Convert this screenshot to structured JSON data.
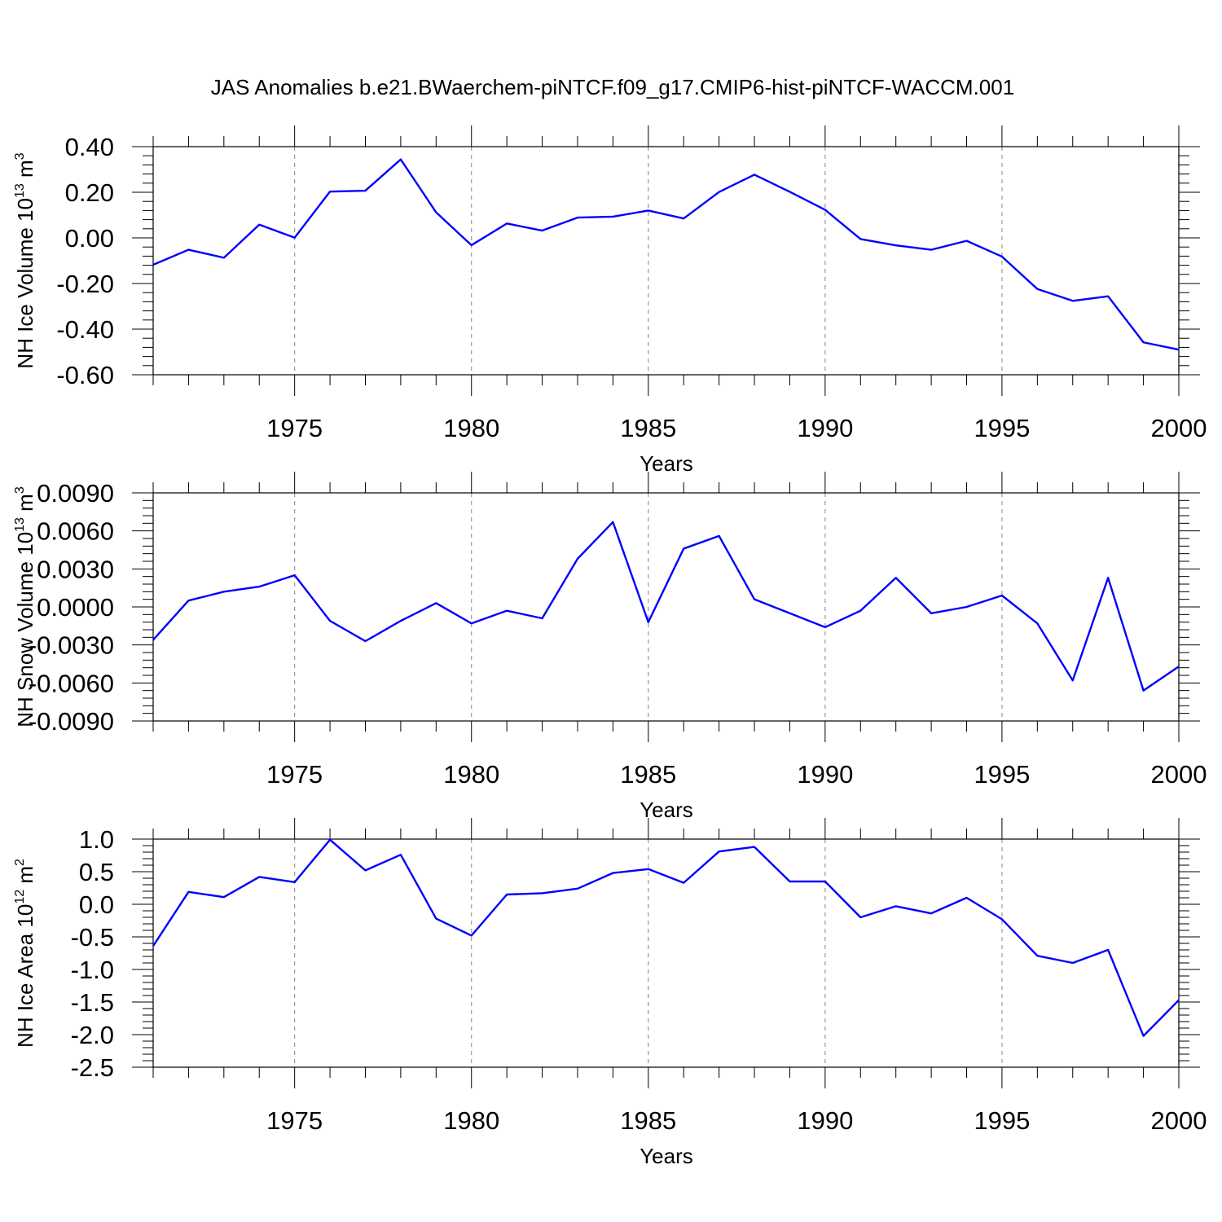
{
  "title": "JAS Anomalies b.e21.BWaerchem-piNTCF.f09_g17.CMIP6-hist-piNTCF-WACCM.001",
  "chart_data": [
    {
      "type": "line",
      "name": "ice-volume",
      "ylabel": {
        "main": "NH Ice Volume 10",
        "sup": "13",
        "unit": " m",
        "unit_sup": "3"
      },
      "xlabel": "Years",
      "xlim": [
        1971,
        2000
      ],
      "ylim": [
        -0.6,
        0.4
      ],
      "yticks": [
        0.4,
        0.2,
        0.0,
        -0.2,
        -0.4,
        -0.6
      ],
      "ytick_labels": [
        "0.40",
        "0.20",
        "0.00",
        "-0.20",
        "-0.40",
        "-0.60"
      ],
      "xticks": [
        1975,
        1980,
        1985,
        1990,
        1995,
        2000
      ],
      "xtick_labels": [
        "1975",
        "1980",
        "1985",
        "1990",
        "1995",
        "2000"
      ],
      "color": "#0000ff",
      "grid_color": "#999999",
      "x": [
        1971,
        1972,
        1973,
        1974,
        1975,
        1976,
        1977,
        1978,
        1979,
        1980,
        1981,
        1982,
        1983,
        1984,
        1985,
        1986,
        1987,
        1988,
        1989,
        1990,
        1991,
        1992,
        1993,
        1994,
        1995,
        1996,
        1997,
        1998,
        1999,
        2000
      ],
      "y": [
        -0.118,
        -0.052,
        -0.087,
        0.058,
        0.001,
        0.203,
        0.207,
        0.344,
        0.112,
        -0.032,
        0.063,
        0.032,
        0.089,
        0.093,
        0.12,
        0.085,
        0.201,
        0.277,
        0.202,
        0.123,
        -0.005,
        -0.033,
        -0.052,
        -0.013,
        -0.082,
        -0.224,
        -0.276,
        -0.256,
        -0.458,
        -0.49
      ]
    },
    {
      "type": "line",
      "name": "snow-volume",
      "ylabel": {
        "main": "NH Snow Volume 10",
        "sup": "13",
        "unit": " m",
        "unit_sup": "3"
      },
      "xlabel": "Years",
      "xlim": [
        1971,
        2000
      ],
      "ylim": [
        -0.009,
        0.009
      ],
      "yticks": [
        0.009,
        0.006,
        0.003,
        0.0,
        -0.003,
        -0.006,
        -0.009
      ],
      "ytick_labels": [
        "0.0090",
        "0.0060",
        "0.0030",
        "0.0000",
        "-0.0030",
        "-0.0060",
        "-0.0090"
      ],
      "xticks": [
        1975,
        1980,
        1985,
        1990,
        1995,
        2000
      ],
      "xtick_labels": [
        "1975",
        "1980",
        "1985",
        "1990",
        "1995",
        "2000"
      ],
      "color": "#0000ff",
      "grid_color": "#999999",
      "x": [
        1971,
        1972,
        1973,
        1974,
        1975,
        1976,
        1977,
        1978,
        1979,
        1980,
        1981,
        1982,
        1983,
        1984,
        1985,
        1986,
        1987,
        1988,
        1989,
        1990,
        1991,
        1992,
        1993,
        1994,
        1995,
        1996,
        1997,
        1998,
        1999,
        2000
      ],
      "y": [
        -0.0026,
        0.0005,
        0.0012,
        0.0016,
        0.0025,
        -0.0011,
        -0.0027,
        -0.0011,
        0.0003,
        -0.0013,
        -0.0003,
        -0.0009,
        0.0038,
        0.0067,
        -0.0012,
        0.0046,
        0.0056,
        0.0006,
        -0.0005,
        -0.0016,
        -0.0003,
        0.0023,
        -0.0005,
        0.0,
        0.0009,
        -0.0013,
        -0.0058,
        0.0023,
        -0.0066,
        -0.0047
      ]
    },
    {
      "type": "line",
      "name": "ice-area",
      "ylabel": {
        "main": "NH Ice Area 10",
        "sup": "12",
        "unit": " m",
        "unit_sup": "2"
      },
      "xlabel": "Years",
      "xlim": [
        1971,
        2000
      ],
      "ylim": [
        -2.5,
        1.0
      ],
      "yticks": [
        1.0,
        0.5,
        0.0,
        -0.5,
        -1.0,
        -1.5,
        -2.0,
        -2.5
      ],
      "ytick_labels": [
        "1.0",
        "0.5",
        "0.0",
        "-0.5",
        "-1.0",
        "-1.5",
        "-2.0",
        "-2.5"
      ],
      "xticks": [
        1975,
        1980,
        1985,
        1990,
        1995,
        2000
      ],
      "xtick_labels": [
        "1975",
        "1980",
        "1985",
        "1990",
        "1995",
        "2000"
      ],
      "color": "#0000ff",
      "grid_color": "#999999",
      "x": [
        1971,
        1972,
        1973,
        1974,
        1975,
        1976,
        1977,
        1978,
        1979,
        1980,
        1981,
        1982,
        1983,
        1984,
        1985,
        1986,
        1987,
        1988,
        1989,
        1990,
        1991,
        1992,
        1993,
        1994,
        1995,
        1996,
        1997,
        1998,
        1999,
        2000
      ],
      "y": [
        -0.64,
        0.19,
        0.11,
        0.42,
        0.34,
        0.99,
        0.52,
        0.76,
        -0.22,
        -0.48,
        0.15,
        0.17,
        0.24,
        0.48,
        0.54,
        0.33,
        0.81,
        0.88,
        0.35,
        0.35,
        -0.2,
        -0.03,
        -0.14,
        0.1,
        -0.23,
        -0.79,
        -0.9,
        -0.7,
        -2.02,
        -1.47
      ]
    }
  ]
}
